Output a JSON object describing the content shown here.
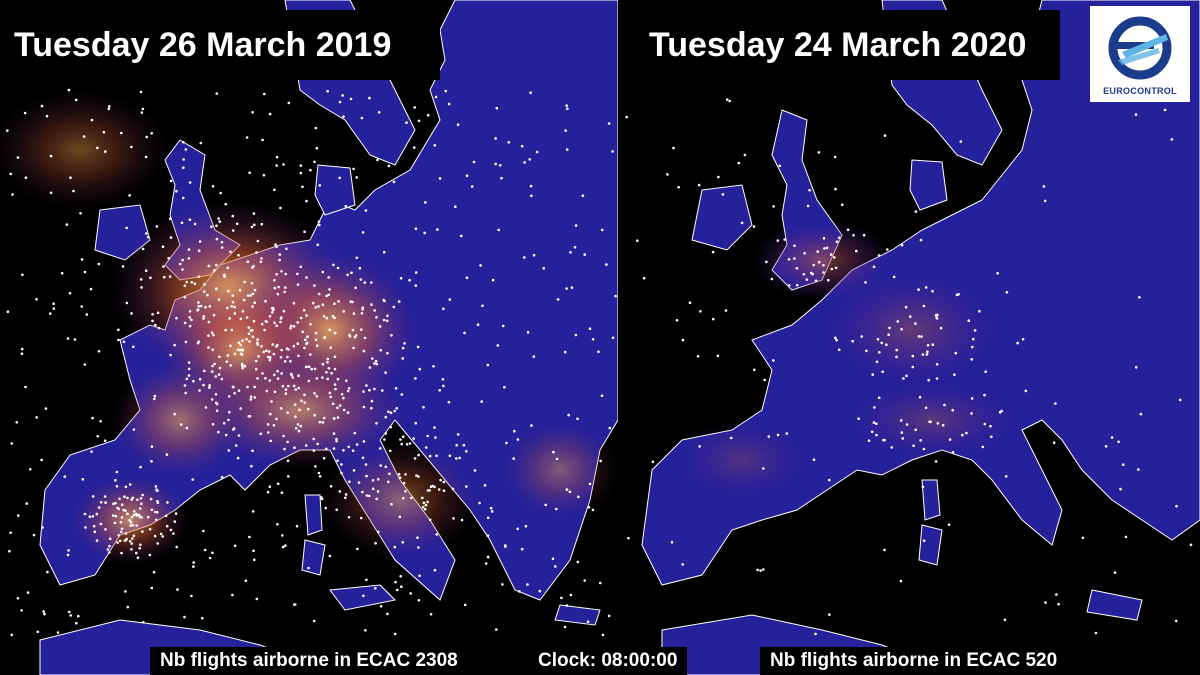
{
  "panels": [
    {
      "id": "2019",
      "date": "Tuesday 26 March 2019",
      "caption": "Nb flights airborne in ECAC 2308",
      "flights_airborne": 2308
    },
    {
      "id": "2020",
      "date": "Tuesday 24 March 2020",
      "caption": "Nb flights airborne in ECAC 520",
      "flights_airborne": 520
    }
  ],
  "clock": "Clock: 08:00:00",
  "logo": {
    "text": "EUROCONTROL",
    "icon": "eurocontrol-logo-icon"
  },
  "colors": {
    "land": "#24219a",
    "sea": "#000000",
    "heat": "#f0a040",
    "flight_dot": "#ffffff",
    "border": "#ffffff",
    "logo_blue": "#1b3c8a"
  }
}
